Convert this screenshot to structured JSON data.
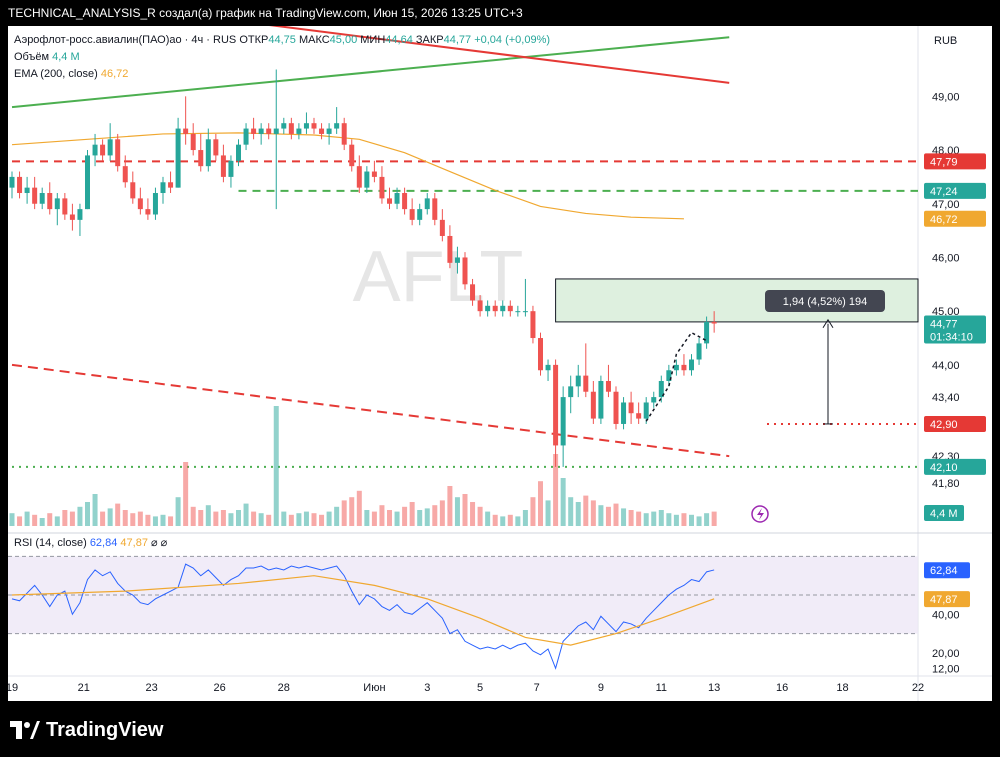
{
  "header": {
    "title": "TECHNICAL_ANALYSIS_R создал(а) график на TradingView.com, Июн 15, 2026 13:25 UTC+3"
  },
  "footer": {
    "brand": "TradingView"
  },
  "colors": {
    "up": "#26a69a",
    "down": "#ef5350",
    "ema": "#f0a830",
    "rsi": "#2962ff",
    "rsi_ma": "#f0a830",
    "green_line": "#4caf50",
    "red_line": "#e53935"
  },
  "legend": {
    "symbol": "Аэрофлот-росс.авиалин(ПАО)ао · 4ч · RUS",
    "ohlc": [
      {
        "label": "ОТКР",
        "value": "44,75"
      },
      {
        "label": "МАКС",
        "value": "45,00"
      },
      {
        "label": "МИН",
        "value": "44,64"
      },
      {
        "label": "ЗАКР",
        "value": "44,77"
      }
    ],
    "change": "+0,04 (+0,09%)",
    "volume_label": "Объём",
    "volume_value": "4,4 M",
    "ema_label": "EMA (200, close)",
    "ema_value": "46,72",
    "rsi_label": "RSI (14, close)",
    "rsi_value": "62,84",
    "rsi_ma_value": "47,87",
    "rsi_extra": "⌀ ⌀"
  },
  "watermark": "AFLT",
  "currency": "RUB",
  "measure_label": "1,94 (4,52%) 194",
  "chart_data": {
    "type": "candlestick",
    "x_ticks": [
      "19",
      "21",
      "23",
      "26",
      "28",
      "Июн",
      "3",
      "5",
      "7",
      "9",
      "11",
      "13",
      "16",
      "18",
      "22"
    ],
    "price_ticks": [
      "49,00",
      "48,00",
      "47,00",
      "46,00",
      "45,00",
      "44,00",
      "43,40",
      "42,30",
      "41,80"
    ],
    "rsi_ticks": [
      "40,00",
      "20,00",
      "12,00"
    ],
    "price_labels": [
      {
        "value": 47.79,
        "text": "47,79",
        "type": "red"
      },
      {
        "value": 47.24,
        "text": "47,24",
        "type": "green"
      },
      {
        "value": 46.72,
        "text": "46,72",
        "type": "ema"
      },
      {
        "value": 44.77,
        "text": "44,77",
        "sub": "01:34:10",
        "type": "green"
      },
      {
        "value": 42.9,
        "text": "42,90",
        "type": "red"
      },
      {
        "value": 42.1,
        "text": "42,10",
        "type": "green"
      }
    ],
    "volume_label": "4,4 M",
    "rsi_labels": [
      {
        "value": 62.84,
        "text": "62,84",
        "type": "rsi"
      },
      {
        "value": 47.87,
        "text": "47,87",
        "type": "rsi_ma"
      }
    ],
    "horizontal_levels": [
      {
        "price": 47.79,
        "style": "dashed",
        "color": "red",
        "from_index": 0
      },
      {
        "price": 47.24,
        "style": "dashed",
        "color": "green",
        "from_index": 30
      },
      {
        "price": 42.9,
        "style": "dotted",
        "color": "red",
        "from_index": 100
      },
      {
        "price": 42.1,
        "style": "dotted",
        "color": "green",
        "from_index": 0
      }
    ],
    "rectangle": {
      "from_index": 72,
      "to_index": 130,
      "top": 45.6,
      "bottom": 44.8
    },
    "candles": [
      [
        47.3,
        47.6,
        47.1,
        47.5
      ],
      [
        47.5,
        47.6,
        47.1,
        47.2
      ],
      [
        47.2,
        47.5,
        47.0,
        47.3
      ],
      [
        47.3,
        47.5,
        46.9,
        47.0
      ],
      [
        47.0,
        47.3,
        46.9,
        47.2
      ],
      [
        47.2,
        47.4,
        46.8,
        46.9
      ],
      [
        46.9,
        47.2,
        46.6,
        47.1
      ],
      [
        47.1,
        47.2,
        46.7,
        46.8
      ],
      [
        46.8,
        47.0,
        46.5,
        46.7
      ],
      [
        46.7,
        47.0,
        46.4,
        46.9
      ],
      [
        46.9,
        48.0,
        46.9,
        47.9
      ],
      [
        47.9,
        48.3,
        47.7,
        48.1
      ],
      [
        48.1,
        48.2,
        47.8,
        47.9
      ],
      [
        47.9,
        48.5,
        47.8,
        48.2
      ],
      [
        48.2,
        48.3,
        47.6,
        47.7
      ],
      [
        47.7,
        47.9,
        47.3,
        47.4
      ],
      [
        47.4,
        47.6,
        47.0,
        47.1
      ],
      [
        47.1,
        47.3,
        46.8,
        46.9
      ],
      [
        46.9,
        47.1,
        46.7,
        46.8
      ],
      [
        46.8,
        47.3,
        46.7,
        47.2
      ],
      [
        47.2,
        47.5,
        47.0,
        47.4
      ],
      [
        47.4,
        47.6,
        47.2,
        47.3
      ],
      [
        47.3,
        48.6,
        47.3,
        48.4
      ],
      [
        48.4,
        49.0,
        48.1,
        48.3
      ],
      [
        48.3,
        48.5,
        47.9,
        48.0
      ],
      [
        48.0,
        48.3,
        47.6,
        47.7
      ],
      [
        47.7,
        48.4,
        47.6,
        48.2
      ],
      [
        48.2,
        48.3,
        47.8,
        47.9
      ],
      [
        47.9,
        48.1,
        47.4,
        47.5
      ],
      [
        47.5,
        47.9,
        47.3,
        47.8
      ],
      [
        47.8,
        48.2,
        47.7,
        48.1
      ],
      [
        48.1,
        48.5,
        48.0,
        48.4
      ],
      [
        48.4,
        48.6,
        48.2,
        48.3
      ],
      [
        48.3,
        48.5,
        48.1,
        48.4
      ],
      [
        48.4,
        48.5,
        48.2,
        48.3
      ],
      [
        48.3,
        49.5,
        46.9,
        48.4
      ],
      [
        48.4,
        48.6,
        48.3,
        48.5
      ],
      [
        48.5,
        48.6,
        48.2,
        48.3
      ],
      [
        48.3,
        48.5,
        48.2,
        48.4
      ],
      [
        48.4,
        48.7,
        48.3,
        48.5
      ],
      [
        48.5,
        48.6,
        48.3,
        48.4
      ],
      [
        48.4,
        48.5,
        48.2,
        48.3
      ],
      [
        48.3,
        48.5,
        48.1,
        48.4
      ],
      [
        48.4,
        48.8,
        48.3,
        48.5
      ],
      [
        48.5,
        48.6,
        48.0,
        48.1
      ],
      [
        48.1,
        48.2,
        47.6,
        47.7
      ],
      [
        47.7,
        47.9,
        47.2,
        47.3
      ],
      [
        47.3,
        47.7,
        47.2,
        47.6
      ],
      [
        47.6,
        47.8,
        47.4,
        47.5
      ],
      [
        47.5,
        47.7,
        47.0,
        47.1
      ],
      [
        47.1,
        47.3,
        46.9,
        47.0
      ],
      [
        47.0,
        47.3,
        46.9,
        47.2
      ],
      [
        47.2,
        47.3,
        46.8,
        46.9
      ],
      [
        46.9,
        47.1,
        46.6,
        46.7
      ],
      [
        46.7,
        47.0,
        46.6,
        46.9
      ],
      [
        46.9,
        47.2,
        46.8,
        47.1
      ],
      [
        47.1,
        47.2,
        46.6,
        46.7
      ],
      [
        46.7,
        46.9,
        46.3,
        46.4
      ],
      [
        46.4,
        46.6,
        45.8,
        45.9
      ],
      [
        45.9,
        46.2,
        45.7,
        46.0
      ],
      [
        46.0,
        46.1,
        45.4,
        45.5
      ],
      [
        45.5,
        45.6,
        45.1,
        45.2
      ],
      [
        45.2,
        45.3,
        44.9,
        45.0
      ],
      [
        45.0,
        45.2,
        44.9,
        45.1
      ],
      [
        45.1,
        45.2,
        44.9,
        45.0
      ],
      [
        45.0,
        45.2,
        44.9,
        45.1
      ],
      [
        45.1,
        45.2,
        44.9,
        45.0
      ],
      [
        45.0,
        45.1,
        44.9,
        45.0
      ],
      [
        45.0,
        45.6,
        44.9,
        45.0
      ],
      [
        45.0,
        45.1,
        44.4,
        44.5
      ],
      [
        44.5,
        44.6,
        43.8,
        43.9
      ],
      [
        43.9,
        44.1,
        43.7,
        44.0
      ],
      [
        44.0,
        44.1,
        42.1,
        42.5
      ],
      [
        42.5,
        43.6,
        42.1,
        43.4
      ],
      [
        43.4,
        43.8,
        43.1,
        43.6
      ],
      [
        43.6,
        44.0,
        43.4,
        43.8
      ],
      [
        43.8,
        44.4,
        43.4,
        43.5
      ],
      [
        43.5,
        43.7,
        42.9,
        43.0
      ],
      [
        43.0,
        43.8,
        42.9,
        43.7
      ],
      [
        43.7,
        44.0,
        43.4,
        43.5
      ],
      [
        43.5,
        43.6,
        42.8,
        42.9
      ],
      [
        42.9,
        43.4,
        42.8,
        43.3
      ],
      [
        43.3,
        43.5,
        42.9,
        43.1
      ],
      [
        43.1,
        43.3,
        42.9,
        43.0
      ],
      [
        43.0,
        43.4,
        42.9,
        43.3
      ],
      [
        43.3,
        43.5,
        43.2,
        43.4
      ],
      [
        43.4,
        43.8,
        43.3,
        43.7
      ],
      [
        43.7,
        44.0,
        43.6,
        43.9
      ],
      [
        43.9,
        44.1,
        43.8,
        44.0
      ],
      [
        44.0,
        44.2,
        43.8,
        43.9
      ],
      [
        43.9,
        44.2,
        43.8,
        44.1
      ],
      [
        44.1,
        44.5,
        44.0,
        44.4
      ],
      [
        44.4,
        44.9,
        44.3,
        44.8
      ],
      [
        44.8,
        45.0,
        44.6,
        44.77
      ]
    ],
    "volumes": [
      0.8,
      0.6,
      0.9,
      0.7,
      0.5,
      0.8,
      0.6,
      1.0,
      0.9,
      1.2,
      1.5,
      2.0,
      0.9,
      1.1,
      1.4,
      1.0,
      0.8,
      0.9,
      0.7,
      0.6,
      0.7,
      0.6,
      1.8,
      4.0,
      1.2,
      1.0,
      1.3,
      0.9,
      1.0,
      0.8,
      1.0,
      1.4,
      0.9,
      0.8,
      0.7,
      7.5,
      0.9,
      0.7,
      0.8,
      0.9,
      0.8,
      0.7,
      0.9,
      1.2,
      1.6,
      1.8,
      2.2,
      1.0,
      0.9,
      1.3,
      1.0,
      0.9,
      1.2,
      1.5,
      1.0,
      1.1,
      1.3,
      1.6,
      2.5,
      1.8,
      2.0,
      1.5,
      1.2,
      0.9,
      0.7,
      0.6,
      0.7,
      0.6,
      1.0,
      1.8,
      2.8,
      1.6,
      4.5,
      3.0,
      1.8,
      1.5,
      1.9,
      1.6,
      1.3,
      1.2,
      1.4,
      1.1,
      1.0,
      0.9,
      0.8,
      0.9,
      1.0,
      0.8,
      0.7,
      0.8,
      0.7,
      0.6,
      0.8,
      0.9
    ],
    "ema": [
      [
        0,
        48.1
      ],
      [
        10,
        48.2
      ],
      [
        20,
        48.3
      ],
      [
        30,
        48.32
      ],
      [
        40,
        48.28
      ],
      [
        46,
        48.2
      ],
      [
        52,
        47.95
      ],
      [
        58,
        47.6
      ],
      [
        64,
        47.25
      ],
      [
        70,
        46.95
      ],
      [
        76,
        46.82
      ],
      [
        82,
        46.75
      ],
      [
        89,
        46.72
      ]
    ],
    "green_trend": [
      [
        0,
        48.8
      ],
      [
        95,
        50.1
      ]
    ],
    "red_trend_top": [
      [
        30,
        50.4
      ],
      [
        95,
        49.25
      ]
    ],
    "red_trend_bottom": [
      [
        0,
        44.0
      ],
      [
        95,
        42.3
      ]
    ],
    "measure": {
      "index": 84,
      "from": 42.9,
      "to": 44.84
    },
    "rsi": [
      48,
      47,
      51,
      55,
      50,
      44,
      50,
      52,
      40,
      46,
      58,
      63,
      60,
      62,
      56,
      52,
      50,
      46,
      45,
      48,
      50,
      52,
      54,
      66,
      64,
      60,
      63,
      59,
      55,
      58,
      60,
      64,
      64,
      65,
      63,
      64,
      63,
      65,
      64,
      65,
      64,
      63,
      64,
      65,
      60,
      52,
      45,
      50,
      48,
      44,
      42,
      45,
      41,
      40,
      43,
      46,
      42,
      38,
      30,
      32,
      26,
      24,
      22,
      23,
      22,
      24,
      22,
      24,
      25,
      21,
      19,
      22,
      12,
      26,
      30,
      34,
      36,
      32,
      39,
      35,
      31,
      36,
      35,
      33,
      38,
      42,
      46,
      50,
      53,
      55,
      58,
      57,
      62,
      63
    ],
    "rsi_ma": [
      [
        0,
        50
      ],
      [
        15,
        52
      ],
      [
        30,
        56
      ],
      [
        40,
        60
      ],
      [
        48,
        55
      ],
      [
        55,
        48
      ],
      [
        62,
        38
      ],
      [
        68,
        28
      ],
      [
        74,
        24
      ],
      [
        80,
        30
      ],
      [
        86,
        38
      ],
      [
        93,
        48
      ]
    ]
  }
}
